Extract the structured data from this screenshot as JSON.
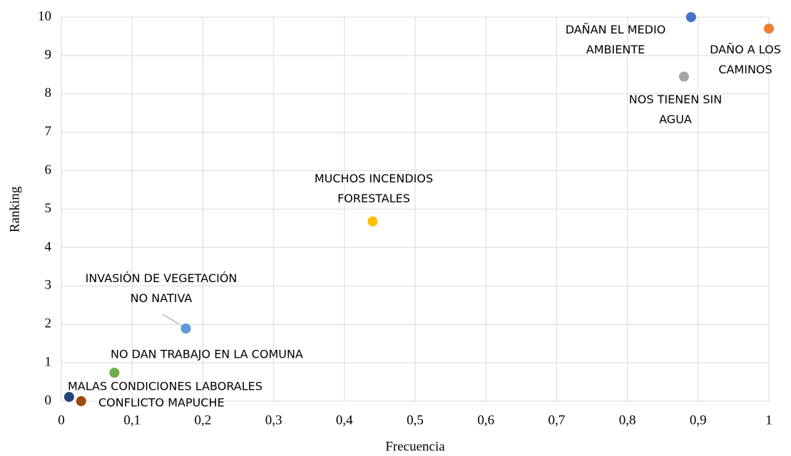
{
  "chart_data": {
    "type": "scatter",
    "x_label": "Frecuencia",
    "y_label": "Ranking",
    "xlim": [
      0,
      1
    ],
    "ylim": [
      0,
      10
    ],
    "grid": true,
    "xticks": [
      0,
      {
        "value": 0.1,
        "label": "0,1"
      },
      {
        "value": 0.2,
        "label": "0,2"
      },
      {
        "value": 0.3,
        "label": "0,3"
      },
      {
        "value": 0.4,
        "label": "0,4"
      },
      {
        "value": 0.5,
        "label": "0,5"
      },
      {
        "value": 0.6,
        "label": "0,6"
      },
      {
        "value": 0.7,
        "label": "0,7"
      },
      {
        "value": 0.8,
        "label": "0,8"
      },
      {
        "value": 0.9,
        "label": "0,9"
      },
      1
    ],
    "yticks": [
      0,
      1,
      2,
      3,
      4,
      5,
      6,
      7,
      8,
      9,
      10
    ],
    "series": [
      {
        "name": "DAÑAN EL MEDIO AMBIENTE",
        "color": "#4472c4",
        "x": [
          0.89
        ],
        "values": [
          10
        ]
      },
      {
        "name": "DAÑO A LOS CAMINOS",
        "color": "#ed7d31",
        "x": [
          1.0
        ],
        "values": [
          9.7
        ]
      },
      {
        "name": "NOS TIENEN SIN AGUA",
        "color": "#a5a5a5",
        "x": [
          0.88
        ],
        "values": [
          8.45
        ]
      },
      {
        "name": "MUCHOS INCENDIOS FORESTALES",
        "color": "#ffc000",
        "x": [
          0.44
        ],
        "values": [
          4.68
        ]
      },
      {
        "name": "INVASIÓN DE VEGETACIÓN NO NATIVA",
        "color": "#5b9bd5",
        "x": [
          0.176
        ],
        "values": [
          1.89
        ]
      },
      {
        "name": "NO DAN TRABAJO EN LA COMUNA",
        "color": "#70ad47",
        "x": [
          0.075
        ],
        "values": [
          0.74
        ]
      },
      {
        "name": "MALAS CONDICIONES LABORALES",
        "color": "#264478",
        "x": [
          0.011
        ],
        "values": [
          0.11
        ]
      },
      {
        "name": "CONFLICTO MAPUCHE",
        "color": "#9e480e",
        "x": [
          0.028
        ],
        "values": [
          0
        ]
      }
    ]
  }
}
